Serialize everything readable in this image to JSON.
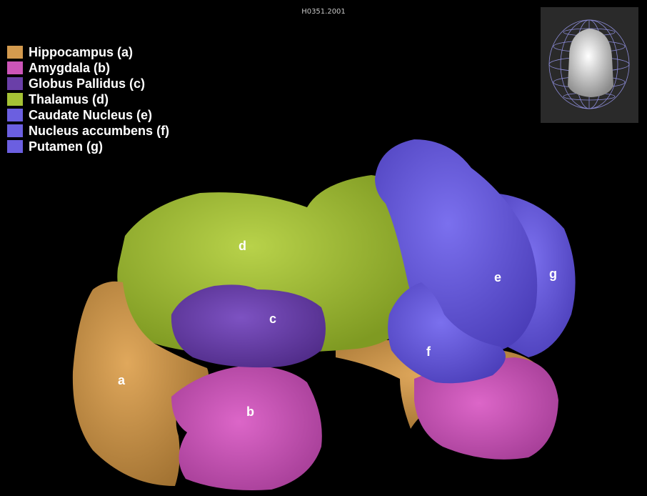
{
  "title": "H0351.2001",
  "legend": [
    {
      "label": "Hippocampus (a)",
      "color": "#d39a4e"
    },
    {
      "label": "Amygdala (b)",
      "color": "#cc55b8"
    },
    {
      "label": "Globus Pallidus (c)",
      "color": "#6a3fa8"
    },
    {
      "label": "Thalamus (d)",
      "color": "#a5c235"
    },
    {
      "label": "Caudate Nucleus (e)",
      "color": "#6b5fe0"
    },
    {
      "label": "Nucleus accumbens (f)",
      "color": "#6b5fe0"
    },
    {
      "label": "Putamen (g)",
      "color": "#6b5fe0"
    }
  ],
  "regions": {
    "a": "a",
    "b": "b",
    "c": "c",
    "d": "d",
    "e": "e",
    "f": "f",
    "g": "g"
  },
  "colors": {
    "background": "#000000",
    "hippocampus": "#d39a4e",
    "amygdala": "#cc55b8",
    "globus_pallidus": "#6a3fa8",
    "thalamus": "#a5c235",
    "caudate": "#6b5fe0",
    "putamen": "#6b5fe0",
    "accumbens": "#6b5fe0"
  },
  "thumbnail_icon": "brain-sphere-thumbnail-icon"
}
